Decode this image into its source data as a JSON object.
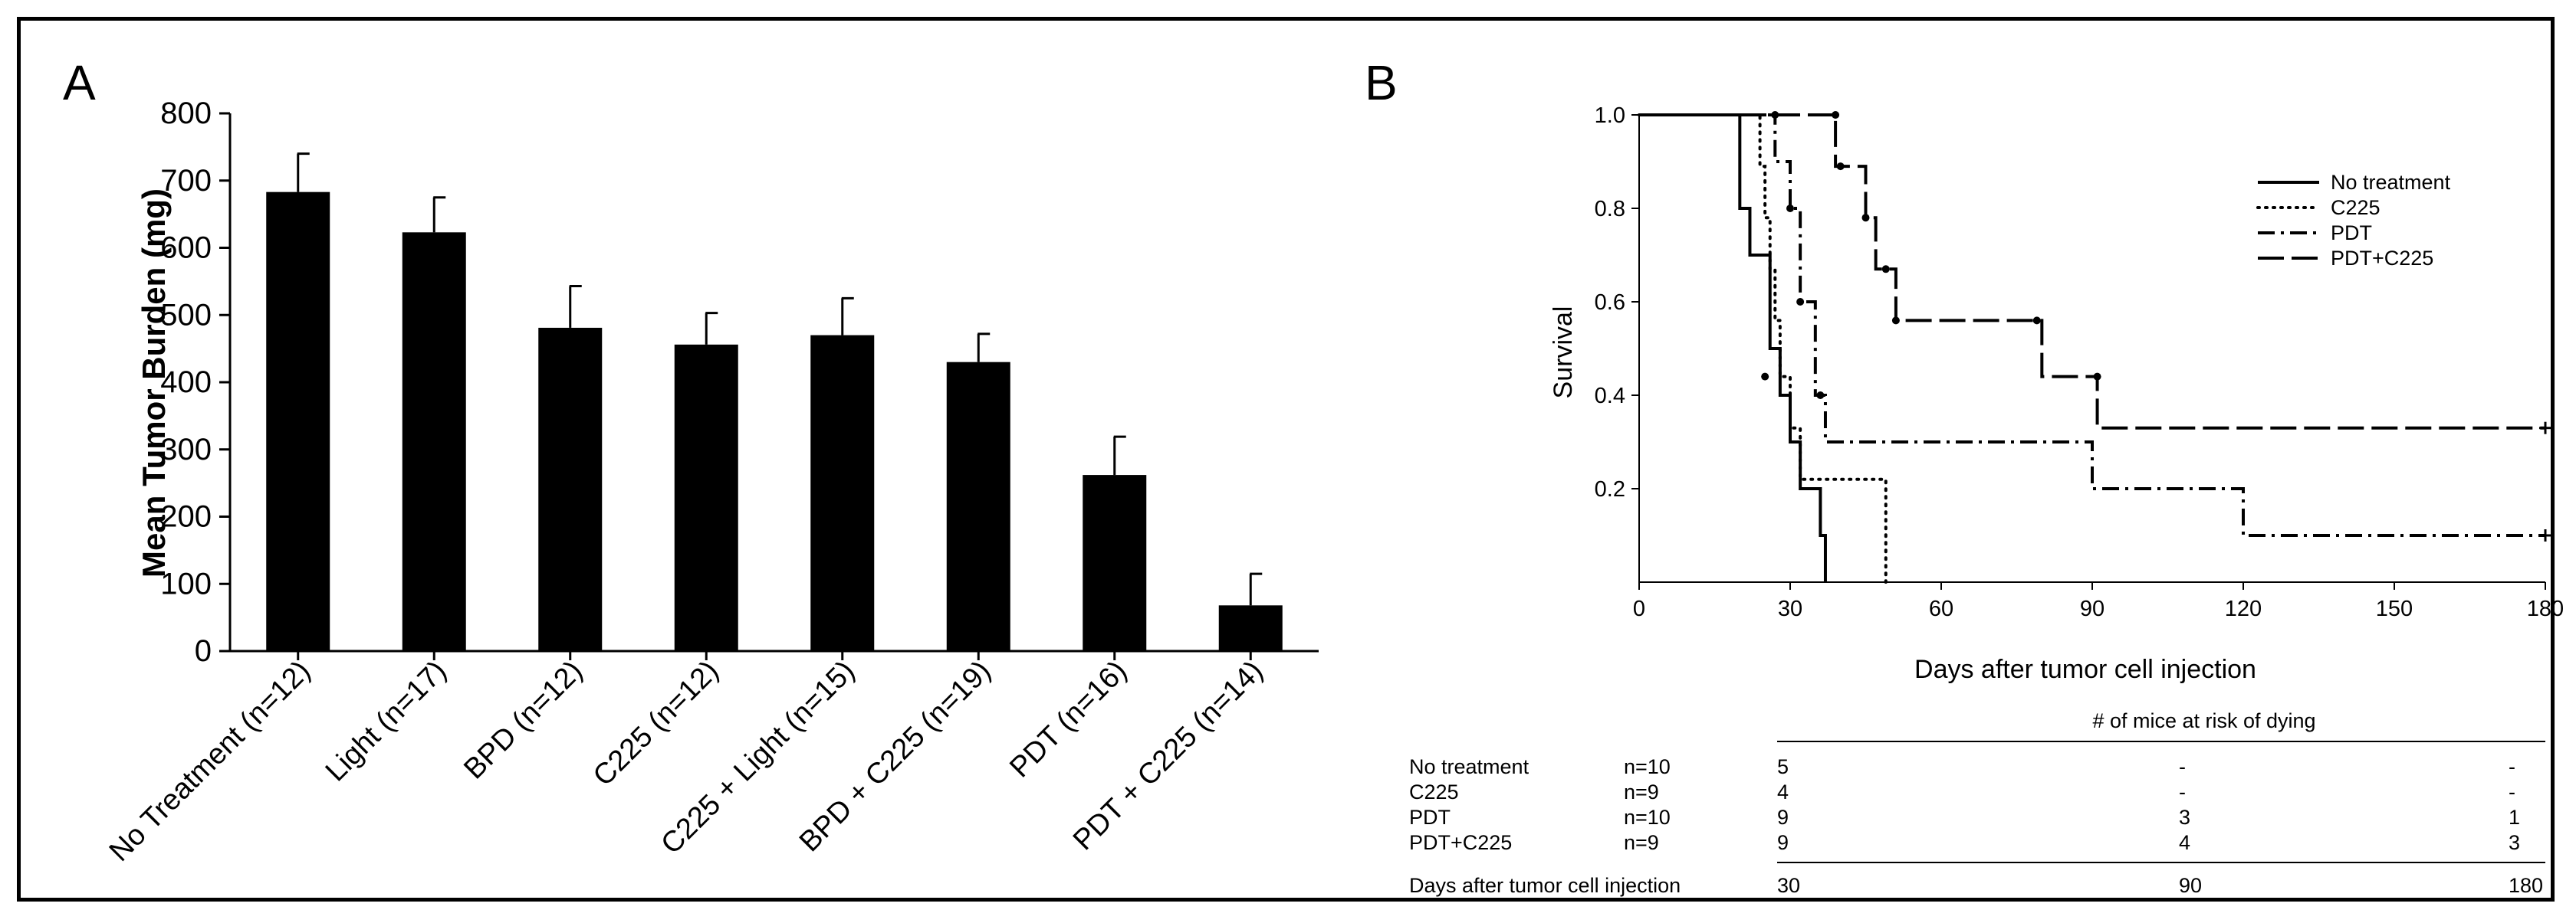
{
  "figure": {
    "panels": [
      "A",
      "B"
    ]
  },
  "chart_data": [
    {
      "type": "bar",
      "panel": "A",
      "ylabel": "Mean Tumor Burden (mg)",
      "xlabel": "",
      "ylim": [
        0,
        800
      ],
      "yticks": [
        "0",
        "100",
        "200",
        "300",
        "400",
        "500",
        "600",
        "700",
        "800"
      ],
      "categories": [
        "No Treatment (n=12)",
        "Light (n=17)",
        "BPD (n=12)",
        "C225 (n=12)",
        "C225 + Light (n=15)",
        "BPD + C225 (n=19)",
        "PDT (n=16)",
        "PDT + C225 (n=14)"
      ],
      "values": [
        683,
        623,
        481,
        456,
        470,
        430,
        262,
        68
      ],
      "errors": [
        57,
        52,
        62,
        47,
        55,
        42,
        57,
        47
      ],
      "color": "#000000"
    },
    {
      "type": "line",
      "panel": "B",
      "step": true,
      "ylabel": "Survival",
      "xlabel": "Days after tumor cell injection",
      "xticks": [
        "0",
        "30",
        "60",
        "90",
        "120",
        "150",
        "180"
      ],
      "yticks": [
        "0.2",
        "0.4",
        "0.6",
        "0.8",
        "1.0"
      ],
      "xlim": [
        0,
        180
      ],
      "ylim": [
        0,
        1
      ],
      "legend_position": "top-right",
      "series": [
        {
          "name": "No treatment",
          "style": "solid",
          "x": [
            0,
            20,
            22,
            26,
            28,
            30,
            32,
            36,
            37
          ],
          "y": [
            1.0,
            0.8,
            0.7,
            0.5,
            0.4,
            0.3,
            0.2,
            0.1,
            0.0
          ]
        },
        {
          "name": "C225",
          "style": "dotted",
          "x": [
            0,
            24,
            25,
            26,
            27,
            28,
            30,
            32,
            40,
            49
          ],
          "y": [
            1.0,
            0.89,
            0.78,
            0.67,
            0.56,
            0.44,
            0.33,
            0.22,
            0.22,
            0.0
          ]
        },
        {
          "name": "PDT",
          "style": "dashdot",
          "x": [
            0,
            27,
            30,
            32,
            35,
            37,
            90,
            120,
            180
          ],
          "y": [
            1.0,
            0.9,
            0.8,
            0.6,
            0.4,
            0.3,
            0.2,
            0.1,
            0.1
          ]
        },
        {
          "name": "PDT+C225",
          "style": "longdash",
          "x": [
            0,
            39,
            45,
            47,
            51,
            80,
            91,
            180
          ],
          "y": [
            1.0,
            0.89,
            0.78,
            0.67,
            0.56,
            0.44,
            0.33,
            0.33
          ]
        }
      ],
      "censor_marks": [
        {
          "series": "No treatment",
          "x": 25,
          "y": 0.44
        },
        {
          "series": "C225",
          "x": 27,
          "y": 1.0
        },
        {
          "series": "PDT",
          "x": 30,
          "y": 0.8
        },
        {
          "series": "PDT",
          "x": 32,
          "y": 0.6
        },
        {
          "series": "PDT",
          "x": 36,
          "y": 0.4
        },
        {
          "series": "PDT",
          "x": 180,
          "y": 0.1
        },
        {
          "series": "PDT+C225",
          "x": 39,
          "y": 1.0
        },
        {
          "series": "PDT+C225",
          "x": 40,
          "y": 0.89
        },
        {
          "series": "PDT+C225",
          "x": 45,
          "y": 0.78
        },
        {
          "series": "PDT+C225",
          "x": 49,
          "y": 0.67
        },
        {
          "series": "PDT+C225",
          "x": 51,
          "y": 0.56
        },
        {
          "series": "PDT+C225",
          "x": 79,
          "y": 0.56
        },
        {
          "series": "PDT+C225",
          "x": 91,
          "y": 0.44
        },
        {
          "series": "PDT+C225",
          "x": 180,
          "y": 0.33
        }
      ]
    },
    {
      "type": "table",
      "panel": "B",
      "title": "# of mice at risk of dying",
      "footer_label": "Days after tumor cell injection",
      "columns": [
        "30",
        "90",
        "180"
      ],
      "rows": [
        {
          "label": "No treatment",
          "n": "n=10",
          "values": [
            "5",
            "-",
            "-"
          ]
        },
        {
          "label": "C225",
          "n": "n=9",
          "values": [
            "4",
            "-",
            "-"
          ]
        },
        {
          "label": "PDT",
          "n": "n=10",
          "values": [
            "9",
            "3",
            "1"
          ]
        },
        {
          "label": "PDT+C225",
          "n": "n=9",
          "values": [
            "9",
            "4",
            "3"
          ]
        }
      ]
    }
  ]
}
